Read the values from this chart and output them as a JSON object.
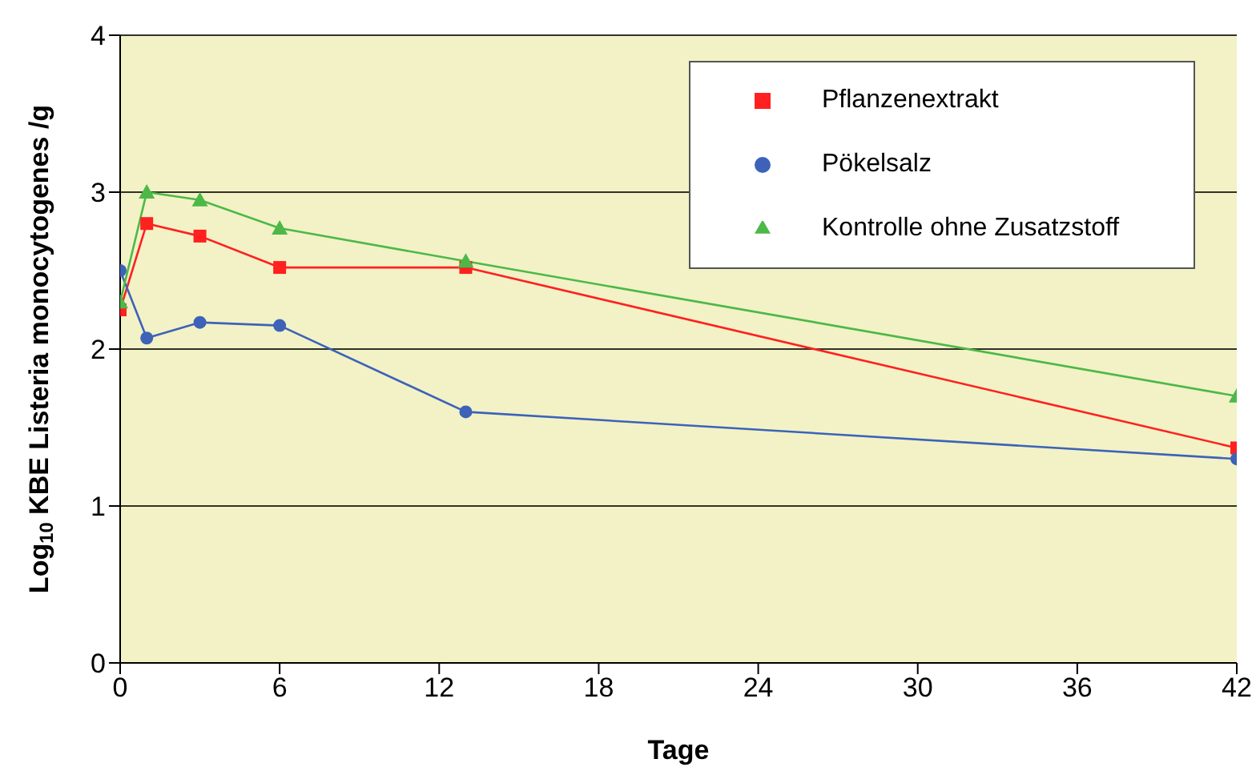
{
  "chart_data": {
    "type": "line",
    "xlabel": "Tage",
    "ylabel": "Log$_{10}$ KBE Listeria monocytogenes /g",
    "x": [
      0,
      1,
      3,
      6,
      13,
      42
    ],
    "series": [
      {
        "name": "Pflanzenextrakt",
        "color": "#ff2020",
        "marker": "square",
        "values": [
          2.25,
          2.8,
          2.72,
          2.52,
          2.52,
          1.37
        ]
      },
      {
        "name": "Pökelsalz",
        "color": "#3d62b8",
        "marker": "circle",
        "values": [
          2.5,
          2.07,
          2.17,
          2.15,
          1.6,
          1.3
        ]
      },
      {
        "name": "Kontrolle ohne Zusatzstoff",
        "color": "#4db848",
        "marker": "triangle",
        "values": [
          2.3,
          3.0,
          2.95,
          2.77,
          2.56,
          1.7
        ]
      }
    ],
    "xlim": [
      0,
      42
    ],
    "xticks": [
      0,
      6,
      12,
      18,
      24,
      30,
      36,
      42
    ],
    "ylim": [
      0,
      4
    ],
    "yticks": [
      0,
      1,
      2,
      3,
      4
    ],
    "grid": "y",
    "legend": "top right"
  }
}
